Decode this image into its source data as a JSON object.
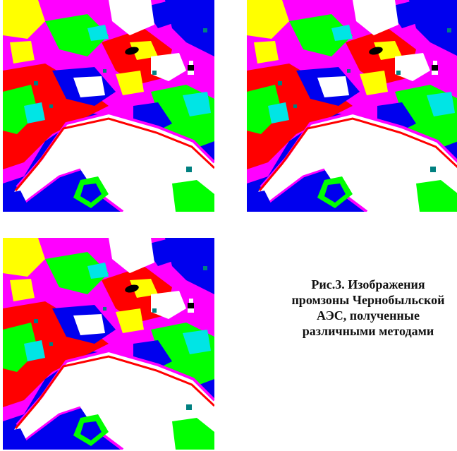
{
  "figure": {
    "panels": [
      {
        "id": "image-1"
      },
      {
        "id": "image-2"
      },
      {
        "id": "image-3"
      }
    ],
    "palette": {
      "white": "#ffffff",
      "yellow": "#ffff00",
      "magenta": "#ff00ff",
      "red": "#ff0000",
      "green": "#00ff00",
      "cyan": "#00e5e5",
      "blue": "#0000ee",
      "teal": "#008080",
      "black": "#000000"
    },
    "caption": {
      "line1": "Рис.3. Изображения",
      "line2": "промзоны Чернобыльской",
      "line3": "АЭС, полученные",
      "line4": "различными методами"
    }
  }
}
